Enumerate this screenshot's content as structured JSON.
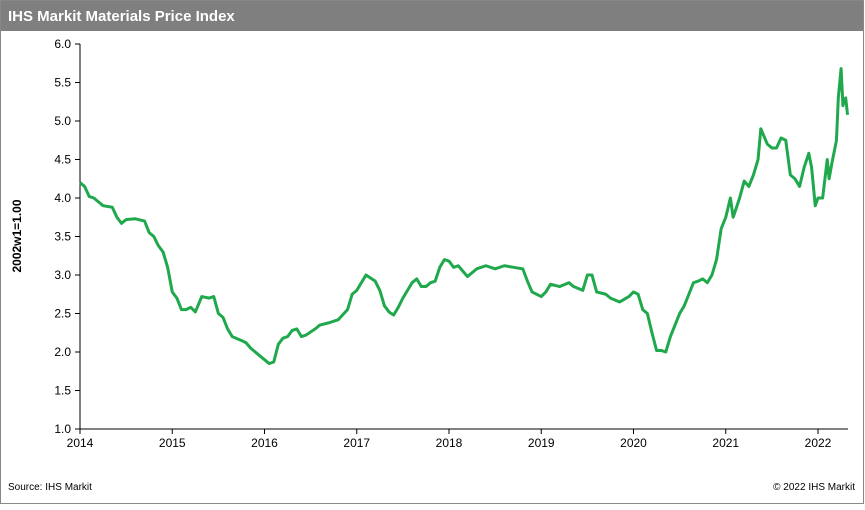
{
  "chart_data": {
    "type": "line",
    "title": "IHS Markit Materials Price Index",
    "y_label": "2002w1=1.00",
    "source": "Source: IHS Markit",
    "copyright": "© 2022 IHS Markit",
    "xlim": [
      2014,
      2022.325
    ],
    "xticks": [
      2014,
      2015,
      2016,
      2017,
      2018,
      2019,
      2020,
      2021,
      2022
    ],
    "ylim": [
      1,
      6
    ],
    "yticks": [
      {
        "value": 1,
        "label": "1.0"
      },
      {
        "value": 1.5,
        "label": "1.5"
      },
      {
        "value": 2,
        "label": "2.0"
      },
      {
        "value": 2.5,
        "label": "2.5"
      },
      {
        "value": 3,
        "label": "3.0"
      },
      {
        "value": 3.5,
        "label": "3.5"
      },
      {
        "value": 4,
        "label": "4.0"
      },
      {
        "value": 4.5,
        "label": "4.5"
      },
      {
        "value": 5,
        "label": "5.0"
      },
      {
        "value": 5.5,
        "label": "5.5"
      },
      {
        "value": 6,
        "label": "6.0"
      }
    ],
    "grid": false,
    "series": [
      {
        "color": "#1fa84c",
        "x": [
          2014.0,
          2014.05,
          2014.1,
          2014.15,
          2014.2,
          2014.25,
          2014.35,
          2014.4,
          2014.45,
          2014.5,
          2014.6,
          2014.7,
          2014.75,
          2014.8,
          2014.85,
          2014.9,
          2014.95,
          2015.0,
          2015.05,
          2015.1,
          2015.15,
          2015.2,
          2015.25,
          2015.32,
          2015.4,
          2015.45,
          2015.5,
          2015.55,
          2015.6,
          2015.65,
          2015.75,
          2015.8,
          2015.85,
          2015.92,
          2016.0,
          2016.05,
          2016.1,
          2016.15,
          2016.2,
          2016.25,
          2016.3,
          2016.35,
          2016.4,
          2016.45,
          2016.55,
          2016.6,
          2016.7,
          2016.8,
          2016.9,
          2016.95,
          2017.0,
          2017.05,
          2017.1,
          2017.2,
          2017.25,
          2017.3,
          2017.35,
          2017.4,
          2017.45,
          2017.5,
          2017.55,
          2017.6,
          2017.65,
          2017.7,
          2017.75,
          2017.8,
          2017.85,
          2017.9,
          2017.95,
          2018.0,
          2018.05,
          2018.1,
          2018.15,
          2018.2,
          2018.3,
          2018.4,
          2018.5,
          2018.6,
          2018.7,
          2018.8,
          2018.85,
          2018.9,
          2019.0,
          2019.05,
          2019.1,
          2019.2,
          2019.3,
          2019.35,
          2019.45,
          2019.5,
          2019.55,
          2019.6,
          2019.7,
          2019.75,
          2019.85,
          2019.95,
          2020.0,
          2020.05,
          2020.1,
          2020.15,
          2020.2,
          2020.25,
          2020.3,
          2020.35,
          2020.4,
          2020.45,
          2020.5,
          2020.55,
          2020.6,
          2020.65,
          2020.7,
          2020.75,
          2020.8,
          2020.85,
          2020.9,
          2020.95,
          2021.0,
          2021.05,
          2021.08,
          2021.1,
          2021.15,
          2021.2,
          2021.25,
          2021.3,
          2021.35,
          2021.38,
          2021.45,
          2021.5,
          2021.55,
          2021.6,
          2021.65,
          2021.7,
          2021.75,
          2021.8,
          2021.85,
          2021.9,
          2021.93,
          2021.97,
          2022.0,
          2022.05,
          2022.1,
          2022.12,
          2022.15,
          2022.2,
          2022.22,
          2022.25,
          2022.27,
          2022.28,
          2022.3,
          2022.32
        ],
        "values": [
          4.2,
          4.15,
          4.02,
          4.0,
          3.95,
          3.9,
          3.88,
          3.75,
          3.67,
          3.72,
          3.73,
          3.7,
          3.55,
          3.5,
          3.38,
          3.3,
          3.1,
          2.78,
          2.7,
          2.55,
          2.55,
          2.58,
          2.52,
          2.72,
          2.7,
          2.72,
          2.5,
          2.45,
          2.3,
          2.2,
          2.15,
          2.12,
          2.05,
          1.98,
          1.9,
          1.85,
          1.87,
          2.1,
          2.18,
          2.2,
          2.28,
          2.3,
          2.2,
          2.22,
          2.3,
          2.35,
          2.38,
          2.42,
          2.55,
          2.75,
          2.8,
          2.9,
          3.0,
          2.92,
          2.8,
          2.6,
          2.52,
          2.48,
          2.58,
          2.7,
          2.8,
          2.9,
          2.95,
          2.85,
          2.85,
          2.9,
          2.92,
          3.1,
          3.2,
          3.18,
          3.1,
          3.12,
          3.05,
          2.98,
          3.08,
          3.12,
          3.08,
          3.12,
          3.1,
          3.08,
          2.92,
          2.78,
          2.72,
          2.78,
          2.88,
          2.85,
          2.9,
          2.85,
          2.8,
          3.0,
          3.0,
          2.78,
          2.75,
          2.7,
          2.65,
          2.72,
          2.78,
          2.75,
          2.55,
          2.5,
          2.25,
          2.02,
          2.02,
          2.0,
          2.2,
          2.35,
          2.5,
          2.6,
          2.75,
          2.9,
          2.92,
          2.95,
          2.9,
          3.0,
          3.2,
          3.6,
          3.75,
          4.0,
          3.75,
          3.82,
          4.0,
          4.22,
          4.15,
          4.3,
          4.5,
          4.9,
          4.7,
          4.65,
          4.65,
          4.78,
          4.75,
          4.3,
          4.25,
          4.15,
          4.4,
          4.58,
          4.4,
          3.9,
          4.0,
          4.0,
          4.5,
          4.25,
          4.45,
          4.75,
          5.3,
          5.68,
          5.2,
          5.25,
          5.3,
          5.08
        ]
      }
    ]
  }
}
